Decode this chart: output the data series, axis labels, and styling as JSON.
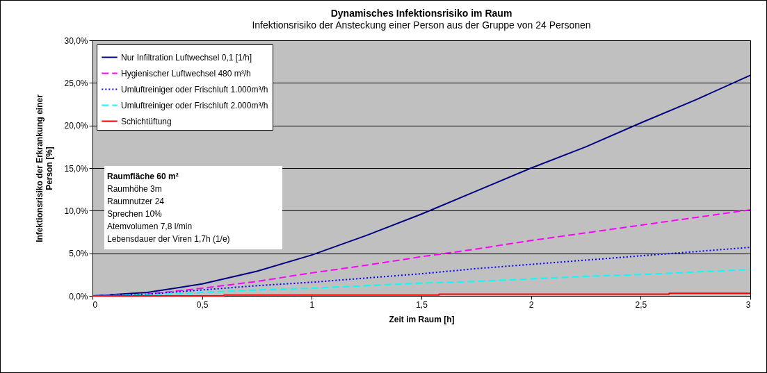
{
  "chart_data": {
    "type": "line",
    "title": "Dynamisches Infektionsrisiko im Raum",
    "subtitle": "Infektionsrisiko der Ansteckung einer Person aus der Gruppe von 24 Personen",
    "xlabel": "Zeit im Raum [h]",
    "ylabel": "Infektionsrisiko der Erkrankung einer Person [%]",
    "x": [
      0,
      0.25,
      0.5,
      0.75,
      1,
      1.25,
      1.5,
      1.75,
      2,
      2.25,
      2.5,
      2.75,
      3
    ],
    "series": [
      {
        "name": "Nur Infiltration Luftwechsel 0,1 [1/h]",
        "color": "#000080",
        "line_style": "solid",
        "values": [
          0,
          0.4,
          1.4,
          2.9,
          4.8,
          7.1,
          9.6,
          12.3,
          15.0,
          17.5,
          20.3,
          23.0,
          25.9
        ]
      },
      {
        "name": "Hygienischer Luftwechsel 480 m³/h",
        "color": "#ff00ff",
        "line_style": "dashed",
        "values": [
          0,
          0.2,
          0.9,
          1.7,
          2.7,
          3.6,
          4.6,
          5.5,
          6.5,
          7.4,
          8.3,
          9.2,
          10.1
        ]
      },
      {
        "name": "Umluftreiniger oder Frischluft 1.000m³/h",
        "color": "#0000ff",
        "line_style": "dotted",
        "values": [
          0,
          0.2,
          0.7,
          1.2,
          1.6,
          2.1,
          2.6,
          3.2,
          3.7,
          4.2,
          4.7,
          5.2,
          5.7
        ]
      },
      {
        "name": "Umluftreiniger oder Frischluft 2.000m³/h",
        "color": "#00ffff",
        "line_style": "dashed",
        "values": [
          0,
          0.1,
          0.4,
          0.7,
          0.9,
          1.2,
          1.5,
          1.7,
          2.0,
          2.3,
          2.5,
          2.8,
          3.1
        ]
      },
      {
        "name": "Schichtüftung",
        "color": "#ff0000",
        "line_style": "solid",
        "x": [
          0,
          0.6,
          0.6,
          1.58,
          1.58,
          2.63,
          2.63,
          3
        ],
        "values": [
          0,
          0,
          0.1,
          0.1,
          0.2,
          0.2,
          0.3,
          0.3
        ]
      }
    ],
    "xlim": [
      0,
      3
    ],
    "xticks": [
      0,
      {
        "value": 0.5,
        "label": "0,5"
      },
      1,
      {
        "value": 1.5,
        "label": "1,5"
      },
      2,
      {
        "value": 2.5,
        "label": "2,5"
      },
      3
    ],
    "ylim": [
      0,
      30
    ],
    "yticks": [
      {
        "value": 0,
        "label": "0,0%"
      },
      {
        "value": 5,
        "label": "5,0%"
      },
      {
        "value": 10,
        "label": "10,0%"
      },
      {
        "value": 15,
        "label": "15,0%"
      },
      {
        "value": 20,
        "label": "20,0%"
      },
      {
        "value": 25,
        "label": "25,0%"
      },
      {
        "value": 30,
        "label": "30,0%"
      }
    ],
    "grid": "y",
    "legend": "top left",
    "marker": "none",
    "annotations": [
      "Raumfläche 60 m²",
      "Raumhöhe 3m",
      "Raumnutzer 24",
      "Sprechen 10%",
      "Atemvolumen 7,8 l/min",
      "Lebensdauer der Viren 1,7h (1/e)"
    ]
  }
}
